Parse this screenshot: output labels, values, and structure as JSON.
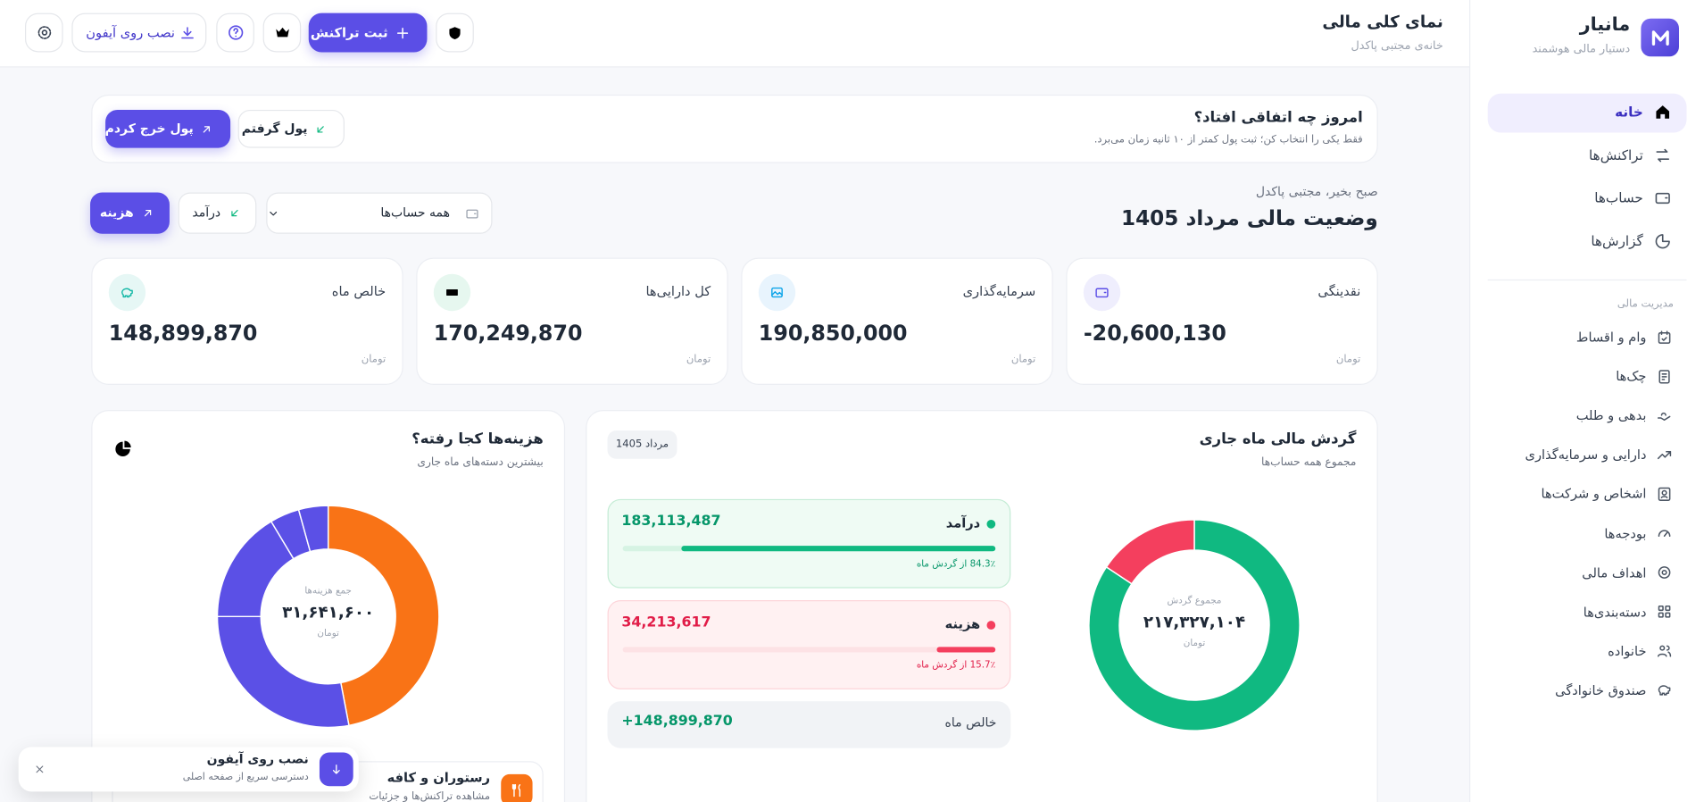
{
  "sidebar": {
    "brand": "مانیار",
    "tagline": "دستیار مالی هوشمند",
    "nav": [
      "خانه",
      "تراکنش‌ها",
      "حساب‌ها",
      "گزارش‌ها"
    ],
    "section_title": "مدیریت مالی",
    "section_nav": [
      "وام و اقساط",
      "چک‌ها",
      "بدهی و طلب",
      "دارایی و سرمایه‌گذاری",
      "اشخاص و شرکت‌ها",
      "بودجه‌ها",
      "اهداف مالی",
      "دسته‌بندی‌ها",
      "خانواده",
      "صندوق خانوادگی"
    ]
  },
  "header": {
    "title": "نمای کلی مالی",
    "subtitle": "خانه‌ی مجتبی پاکدل",
    "add_transaction": "ثبت تراکنش",
    "install_iphone": "نصب روی آیفون"
  },
  "quick": {
    "title": "امروز چه اتفاقی افتاد؟",
    "subtitle": "فقط یکی را انتخاب کن؛ ثبت پول کمتر از ۱۰ ثانیه زمان می‌برد.",
    "received": "پول گرفتم",
    "spent": "پول خرج کردم"
  },
  "overview": {
    "greeting": "صبح بخیر، مجتبی پاکدل",
    "title": "وضعیت مالی مرداد 1405",
    "account_filter": "همه حساب‌ها",
    "income_button": "درآمد",
    "expense_button": "هزینه"
  },
  "cards": [
    {
      "label": "نقدینگی",
      "value": "-20,600,130",
      "unit": "تومان"
    },
    {
      "label": "سرمایه‌گذاری",
      "value": "190,850,000",
      "unit": "تومان"
    },
    {
      "label": "کل دارایی‌ها",
      "value": "170,249,870",
      "unit": "تومان"
    },
    {
      "label": "خالص ماه",
      "value": "148,899,870",
      "unit": "تومان"
    }
  ],
  "cashflow": {
    "title": "گردش مالی ماه جاری",
    "subtitle": "مجموع همه حساب‌ها",
    "period": "مرداد 1405",
    "center_label": "مجموع گردش",
    "center_value": "۲۱۷,۳۲۷,۱۰۴",
    "center_unit": "تومان",
    "rows": [
      {
        "label": "درآمد",
        "value": "183,113,487",
        "percent": 84.3,
        "share": "84.3٪ از گردش ماه",
        "color": "#10b981"
      },
      {
        "label": "هزینه",
        "value": "34,213,617",
        "percent": 15.7,
        "share": "15.7٪ از گردش ماه",
        "color": "#f43f5e"
      }
    ],
    "net_label": "خالص ماه",
    "net_value": "+148,899,870"
  },
  "expenses": {
    "title": "هزینه‌ها کجا رفته؟",
    "subtitle": "بیشترین دسته‌های ماه جاری",
    "center_label": "جمع هزینه‌ها",
    "center_value": "۳۱,۶۴۱,۶۰۰",
    "center_unit": "تومان",
    "segments": [
      {
        "percent": 47,
        "color": "#f97316"
      },
      {
        "percent": 28,
        "color": "#5b50e6"
      },
      {
        "percent": 16.4,
        "color": "#5b50e6"
      },
      {
        "percent": 4.3,
        "color": "#5b50e6"
      },
      {
        "percent": 4.3,
        "color": "#5b50e6"
      }
    ],
    "top_category": {
      "name": "رستوران و کافه",
      "subtitle": "مشاهده تراکنش‌ها و جزئیات"
    }
  },
  "install_toast": {
    "title": "نصب روی آیفون",
    "subtitle": "دسترسی سریع از صفحه اصلی"
  }
}
